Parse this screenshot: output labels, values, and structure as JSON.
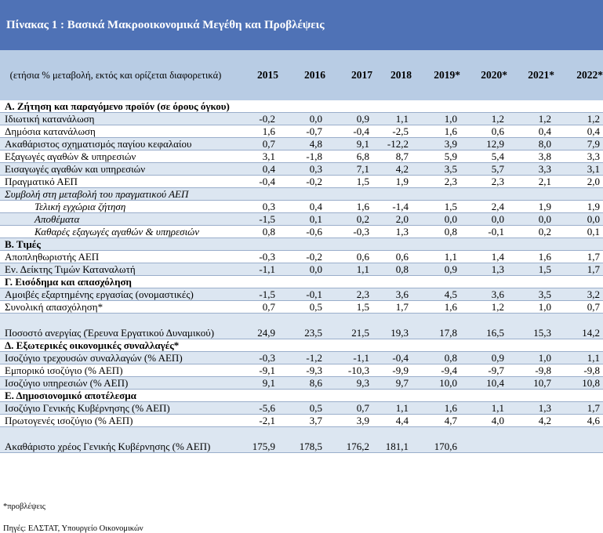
{
  "title": "Πίνακας 1 : Βασικά Μακροοικονομικά Μεγέθη και Προβλέψεις",
  "header_label": "(ετήσια % μεταβολή, εκτός και ορίζεται διαφορετικά)",
  "years": [
    "2015",
    "2016",
    "2017",
    "2018",
    "2019*",
    "2020*",
    "2021*",
    "2022*"
  ],
  "rows": [
    {
      "type": "section",
      "label": "Α. Ζήτηση και παραγόμενο προϊόν (σε όρους όγκου)"
    },
    {
      "type": "data",
      "shade": true,
      "label": "Ιδιωτική κατανάλωση",
      "values": [
        "-0,2",
        "0,0",
        "0,9",
        "1,1",
        "1,0",
        "1,2",
        "1,2",
        "1,2"
      ]
    },
    {
      "type": "data",
      "label": "Δημόσια κατανάλωση",
      "values": [
        "1,6",
        "-0,7",
        "-0,4",
        "-2,5",
        "1,6",
        "0,6",
        "0,4",
        "0,4"
      ]
    },
    {
      "type": "data",
      "shade": true,
      "label": "Ακαθάριστος σχηματισμός παγίου κεφαλαίου",
      "values": [
        "0,7",
        "4,8",
        "9,1",
        "-12,2",
        "3,9",
        "12,9",
        "8,0",
        "7,9"
      ]
    },
    {
      "type": "data",
      "label": "Εξαγωγές αγαθών & υπηρεσιών",
      "values": [
        "3,1",
        "-1,8",
        "6,8",
        "8,7",
        "5,9",
        "5,4",
        "3,8",
        "3,3"
      ]
    },
    {
      "type": "data",
      "shade": true,
      "label": "Εισαγωγές αγαθών και υπηρεσιών",
      "values": [
        "0,4",
        "0,3",
        "7,1",
        "4,2",
        "3,5",
        "5,7",
        "3,3",
        "3,1"
      ]
    },
    {
      "type": "data",
      "label": "Πραγματικό ΑΕΠ",
      "values": [
        "-0,4",
        "-0,2",
        "1,5",
        "1,9",
        "2,3",
        "2,3",
        "2,1",
        "2,0"
      ]
    },
    {
      "type": "subhead",
      "shade": true,
      "label": "Συμβολή στη μεταβολή του πραγματικού ΑΕΠ"
    },
    {
      "type": "indent",
      "label": "Τελική εγχώρια ζήτηση",
      "values": [
        "0,3",
        "0,4",
        "1,6",
        "-1,4",
        "1,5",
        "2,4",
        "1,9",
        "1,9"
      ]
    },
    {
      "type": "indent",
      "shade": true,
      "label": "Αποθέματα",
      "values": [
        "-1,5",
        "0,1",
        "0,2",
        "2,0",
        "0,0",
        "0,0",
        "0,0",
        "0,0"
      ]
    },
    {
      "type": "indent",
      "label": "Καθαρές εξαγωγές αγαθών & υπηρεσιών",
      "values": [
        "0,8",
        "-0,6",
        "-0,3",
        "1,3",
        "0,8",
        "-0,1",
        "0,2",
        "0,1"
      ]
    },
    {
      "type": "section",
      "shade": true,
      "label": "Β. Τιμές"
    },
    {
      "type": "data",
      "label": "Αποπληθωριστής ΑΕΠ",
      "values": [
        "-0,3",
        "-0,2",
        "0,6",
        "0,6",
        "1,1",
        "1,4",
        "1,6",
        "1,7"
      ]
    },
    {
      "type": "data",
      "shade": true,
      "label": "Εν. Δείκτης Τιμών Καταναλωτή",
      "values": [
        "-1,1",
        "0,0",
        "1,1",
        "0,8",
        "0,9",
        "1,3",
        "1,5",
        "1,7"
      ]
    },
    {
      "type": "section",
      "label": "Γ. Εισόδημα και απασχόληση"
    },
    {
      "type": "data",
      "shade": true,
      "label": "Αμοιβές εξαρτημένης εργασίας (ονομαστικές)",
      "values": [
        "-1,5",
        "-0,1",
        "2,3",
        "3,6",
        "4,5",
        "3,6",
        "3,5",
        "3,2"
      ]
    },
    {
      "type": "data",
      "label": "Συνολική απασχόληση*",
      "values": [
        "0,7",
        "0,5",
        "1,5",
        "1,7",
        "1,6",
        "1,2",
        "1,0",
        "0,7"
      ]
    },
    {
      "type": "data",
      "shade": true,
      "tall": true,
      "label": "Ποσοστό ανεργίας (Έρευνα Εργατικού Δυναμικού)",
      "values": [
        "24,9",
        "23,5",
        "21,5",
        "19,3",
        "17,8",
        "16,5",
        "15,3",
        "14,2"
      ]
    },
    {
      "type": "section",
      "label": "Δ. Εξωτερικές οικονομικές συναλλαγές*"
    },
    {
      "type": "data",
      "shade": true,
      "label": "Ισοζύγιο τρεχουσών συναλλαγών (% ΑΕΠ)",
      "values": [
        "-0,3",
        "-1,2",
        "-1,1",
        "-0,4",
        "0,8",
        "0,9",
        "1,0",
        "1,1"
      ]
    },
    {
      "type": "data",
      "label": "Εμπορικό ισοζύγιο (% ΑΕΠ)",
      "values": [
        "-9,1",
        "-9,3",
        "-10,3",
        "-9,9",
        "-9,4",
        "-9,7",
        "-9,8",
        "-9,8"
      ]
    },
    {
      "type": "data",
      "shade": true,
      "label": "Ισοζύγιο υπηρεσιών (% ΑΕΠ)",
      "values": [
        "9,1",
        "8,6",
        "9,3",
        "9,7",
        "10,0",
        "10,4",
        "10,7",
        "10,8"
      ]
    },
    {
      "type": "section",
      "label": "Ε. Δημοσιονομικό αποτέλεσμα"
    },
    {
      "type": "data",
      "shade": true,
      "label": "Ισοζύγιο Γενικής Κυβέρνησης (% ΑΕΠ)",
      "values": [
        "-5,6",
        "0,5",
        "0,7",
        "1,1",
        "1,6",
        "1,1",
        "1,3",
        "1,7"
      ]
    },
    {
      "type": "data",
      "label": "Πρωτογενές ισοζύγιο (% ΑΕΠ)",
      "values": [
        "-2,1",
        "3,7",
        "3,9",
        "4,4",
        "4,7",
        "4,0",
        "4,2",
        "4,6"
      ]
    },
    {
      "type": "data",
      "shade": true,
      "tall": true,
      "label": "Ακαθάριστο χρέος Γενικής Κυβέρνησης (% ΑΕΠ)",
      "values": [
        "175,9",
        "178,5",
        "176,2",
        "181,1",
        "170,6",
        "",
        "",
        ""
      ]
    }
  ],
  "footnote_forecast": "*προβλέψεις",
  "sources": "Πηγές: ΕΛΣΤΑΤ, Υπουργείο Οικονομικών"
}
